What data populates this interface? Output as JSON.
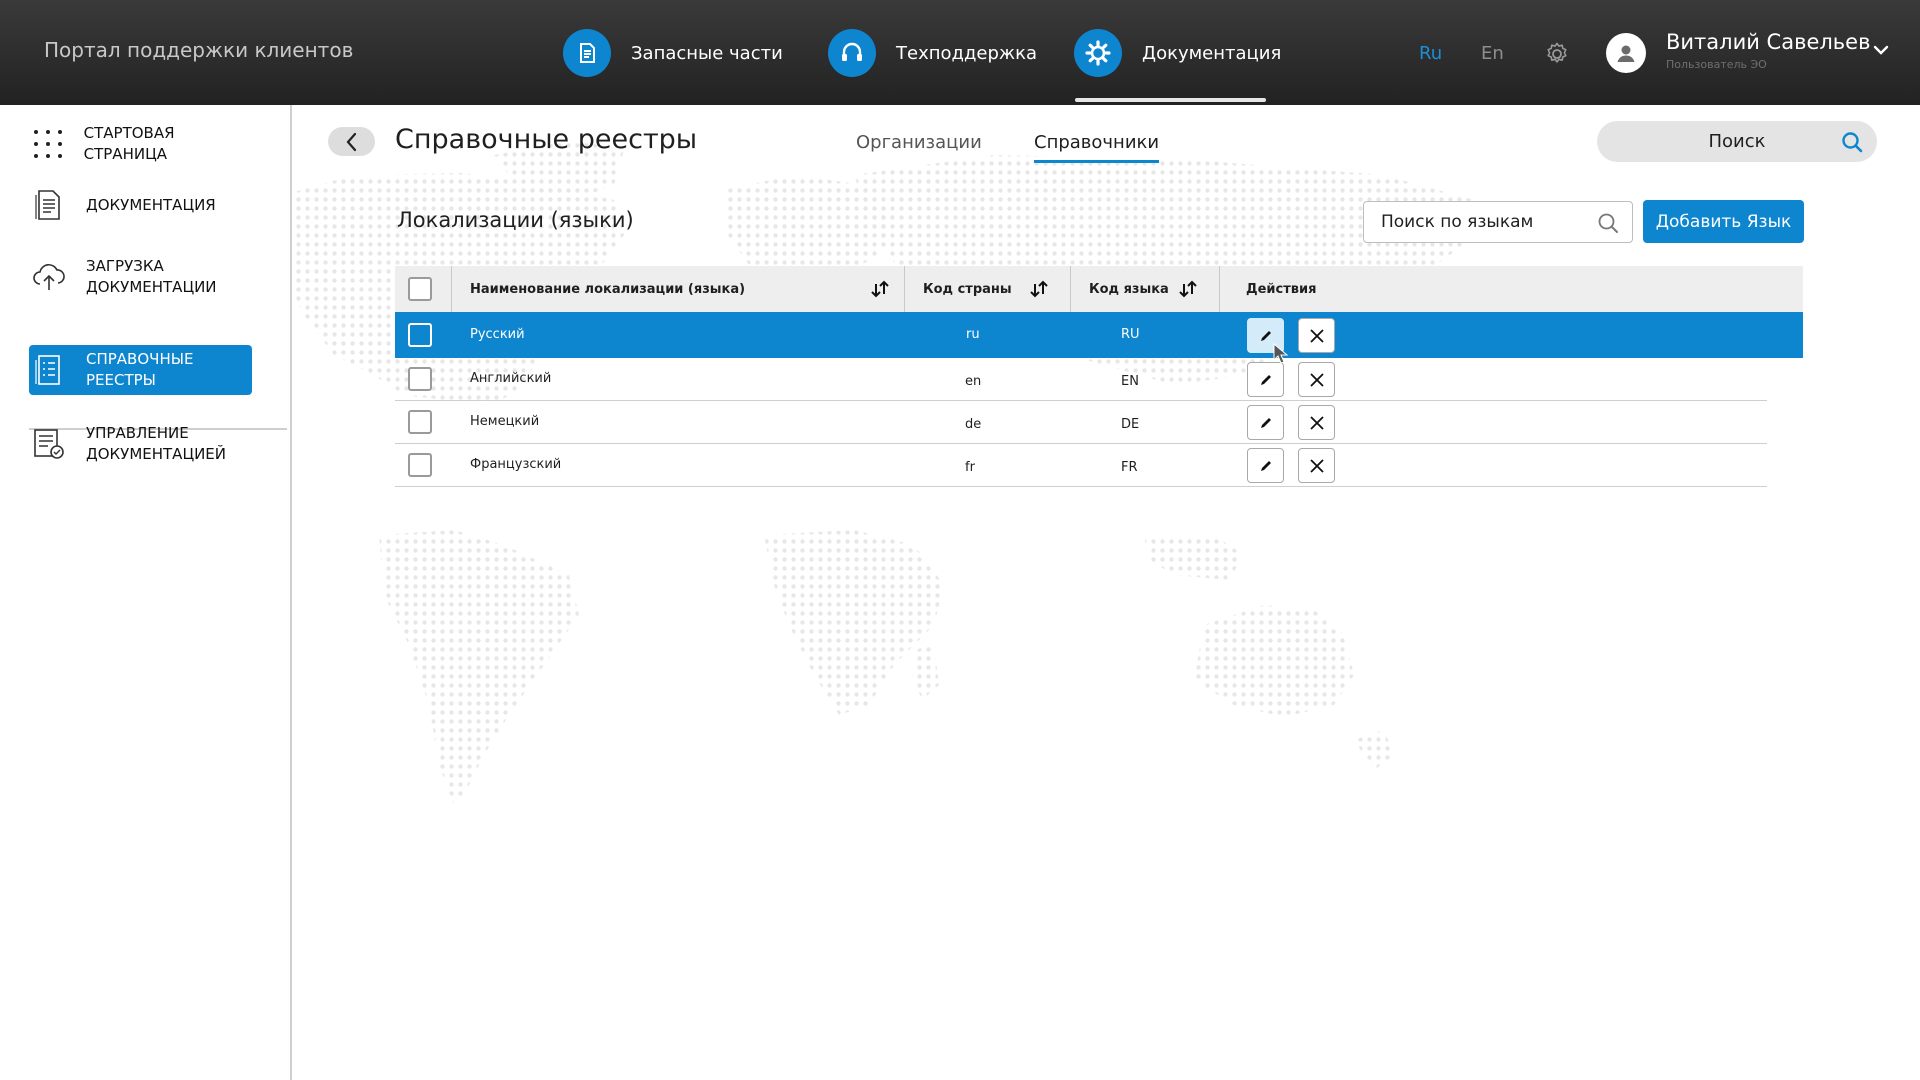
{
  "header": {
    "portal_title": "Портал поддержки клиентов",
    "nav": [
      {
        "label": "Запасные части",
        "icon": "document-icon"
      },
      {
        "label": "Техподдержка",
        "icon": "headset-icon"
      },
      {
        "label": "Документация",
        "icon": "gear-wrench-icon",
        "active": true
      }
    ],
    "languages": [
      {
        "code": "Ru",
        "active": true
      },
      {
        "code": "En",
        "active": false
      }
    ],
    "user": {
      "name": "Виталий Савельев",
      "role": "Пользователь ЭО"
    }
  },
  "sidebar": {
    "items": [
      {
        "label": "Стартовая страница",
        "icon": "grid-dots-icon"
      },
      {
        "label": "Документация",
        "icon": "document-list-icon"
      },
      {
        "label_line1": "Загрузка",
        "label_line2": "документации",
        "icon": "cloud-upload-icon"
      },
      {
        "label_line1": "Справочные",
        "label_line2": "реестры",
        "icon": "registry-icon",
        "active": true
      },
      {
        "label_line1": "Управление",
        "label_line2": "документацией",
        "icon": "doc-settings-icon"
      }
    ]
  },
  "page": {
    "title": "Справочные реестры",
    "tabs": [
      {
        "label": "Организации",
        "active": false
      },
      {
        "label": "Справочники",
        "active": true
      }
    ],
    "global_search": "Поиск"
  },
  "section": {
    "title": "Локализации (языки)",
    "search_placeholder": "Поиск по языкам",
    "add_button": "Добавить Язык"
  },
  "table": {
    "columns": [
      "Наименование локализации (языка)",
      "Код страны",
      "Код языка",
      "Действия"
    ],
    "rows": [
      {
        "name": "Русский",
        "country": "ru",
        "lang": "RU",
        "selected": true
      },
      {
        "name": "Английский",
        "country": "en",
        "lang": "EN",
        "selected": false
      },
      {
        "name": "Немецкий",
        "country": "de",
        "lang": "DE",
        "selected": false
      },
      {
        "name": "Французский",
        "country": "fr",
        "lang": "FR",
        "selected": false
      }
    ]
  },
  "colors": {
    "accent": "#0d86cf",
    "topbar": "#2b2b2b",
    "header_row": "#eeeeee",
    "active_lang": "#1a8fd8"
  }
}
